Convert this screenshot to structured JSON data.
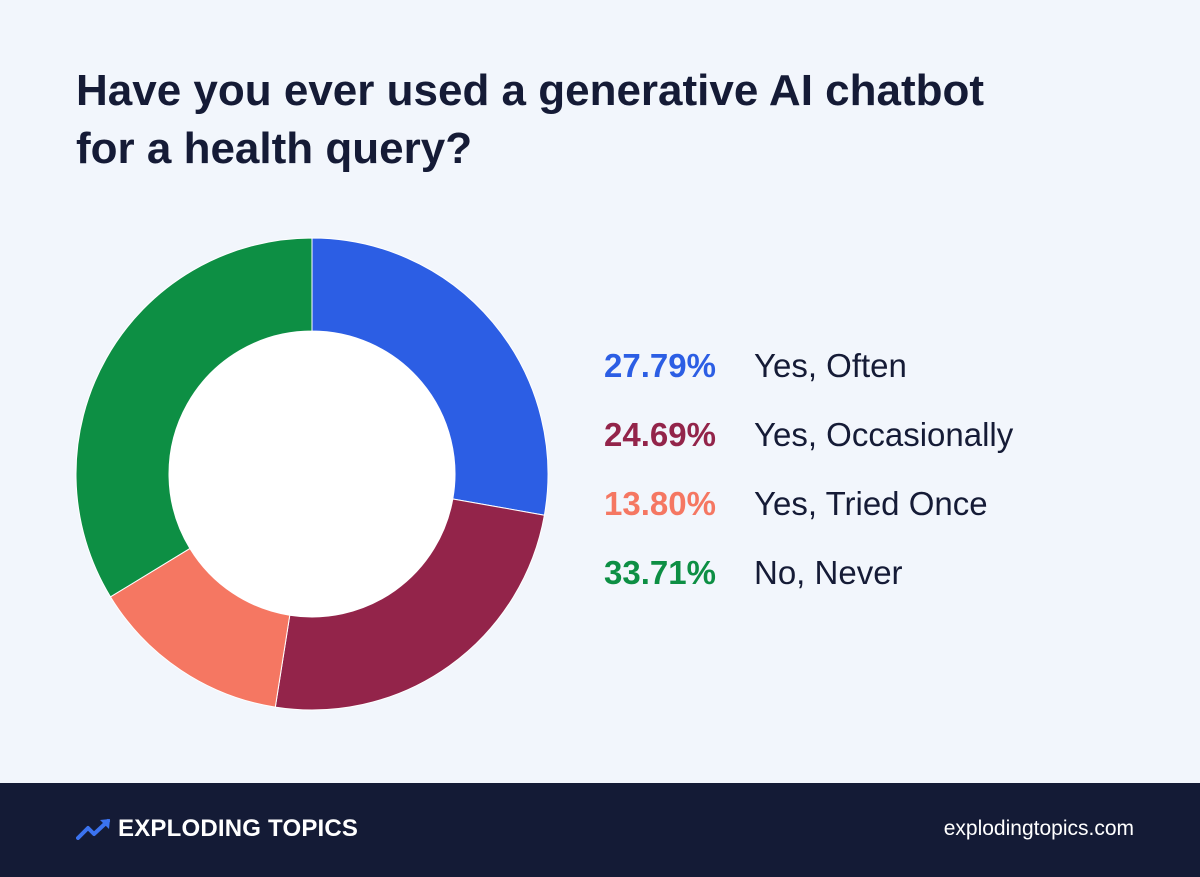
{
  "title": {
    "line1": "Have you ever used a generative AI chatbot",
    "line2": "for a health query?"
  },
  "chart_data": {
    "type": "pie",
    "variant": "donut",
    "slices": [
      {
        "label": "Yes, Often",
        "value": 27.79,
        "value_label": "27.79%",
        "color": "#2c5ee4"
      },
      {
        "label": "Yes, Occasionally",
        "value": 24.69,
        "value_label": "24.69%",
        "color": "#93244a"
      },
      {
        "label": "Yes, Tried Once",
        "value": 13.8,
        "value_label": "13.80%",
        "color": "#f57762"
      },
      {
        "label": "No, Never",
        "value": 33.71,
        "value_label": "33.71%",
        "color": "#0d8f44"
      }
    ],
    "legend_position": "right"
  },
  "footer": {
    "brand": "EXPLODING TOPICS",
    "brand_icon": "trending-up-arrow-icon",
    "brand_icon_color": "#3b73f0",
    "url": "explodingtopics.com",
    "background": "#141b36"
  }
}
